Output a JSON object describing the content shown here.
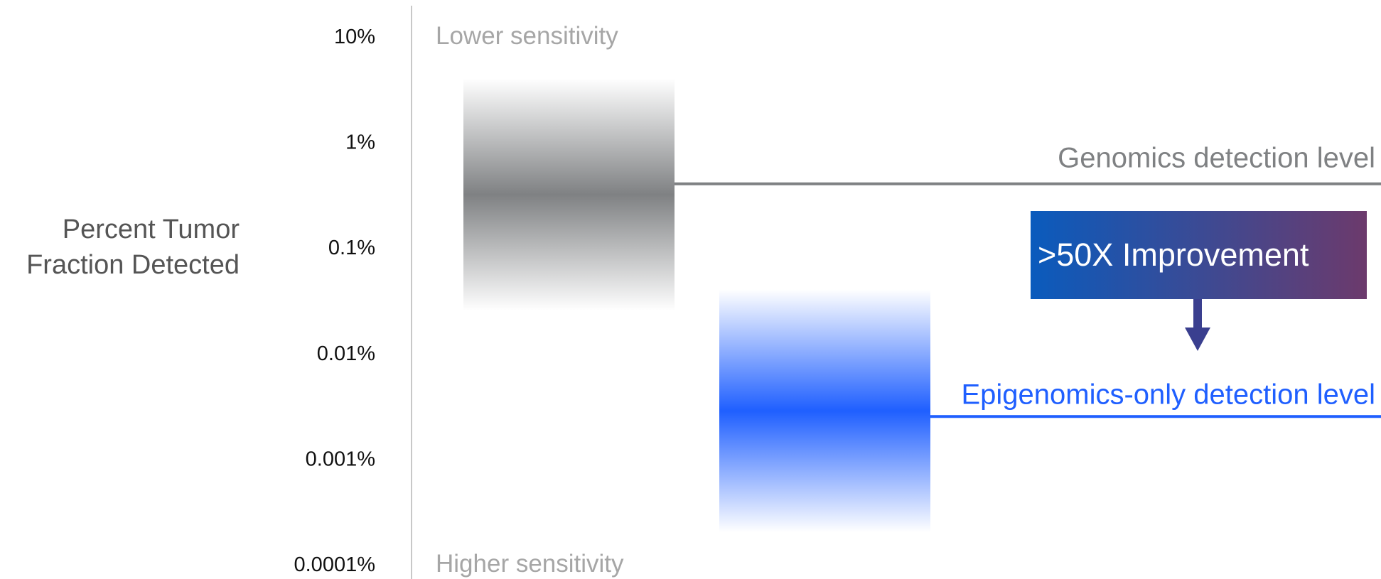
{
  "chart_data": {
    "type": "bar",
    "ylabel": [
      "Percent Tumor",
      "Fraction Detected"
    ],
    "y_scale": "log",
    "y_ticks": [
      "10%",
      "1%",
      "0.1%",
      "0.01%",
      "0.001%",
      "0.0001%"
    ],
    "y_tick_values": [
      10,
      1,
      0.1,
      0.01,
      0.001,
      0.0001
    ],
    "ylim": [
      0.0001,
      10
    ],
    "grid": false,
    "top_note": "Lower sensitivity",
    "bottom_note": "Higher sensitivity",
    "series": [
      {
        "name": "Genomics detection level",
        "range": [
          0.025,
          4
        ],
        "level": 0.4,
        "color": "#7f8183"
      },
      {
        "name": "Epigenomics-only detection level",
        "range": [
          0.0002,
          0.04
        ],
        "level": 0.0025,
        "color": "#1f5fff"
      }
    ],
    "annotation": {
      "text": ">50X Improvement",
      "gradient": [
        "#0a5bbd",
        "#6c3a6c"
      ],
      "arrow_color": "#3a3f8f"
    }
  }
}
